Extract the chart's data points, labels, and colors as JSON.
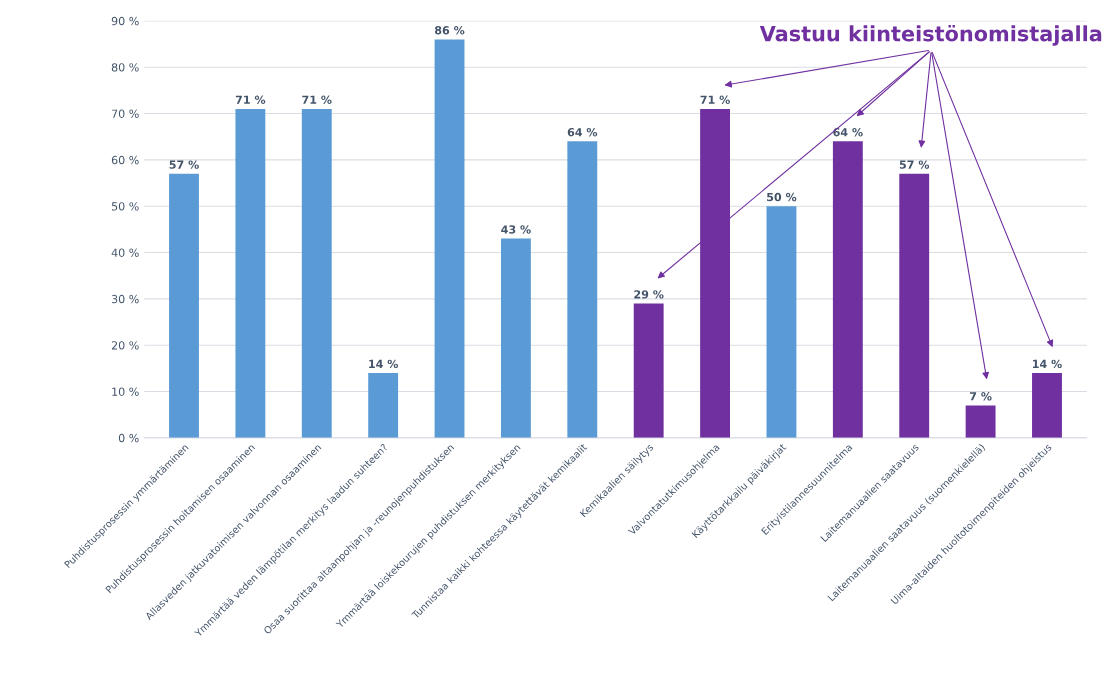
{
  "chart_data": {
    "type": "bar",
    "categories": [
      "Puhdistusprosessin ymmärtäminen",
      "Puhdistusprosessin hoitamisen osaaminen",
      "Allasveden jatkuvatoimisen valvonnan osaaminen",
      "Ymmärtää veden lämpötilan merkitys laadun suhteen?",
      "Osaa suorittaa altaanpohjan ja -reunojenpuhdistuksen",
      "Ymmärtää loiskekourujen puhdistuksen merkityksen",
      "Tunnistaa kaikki kohteessa käytettävät kemikaalit",
      "Kemikaalien säilytys",
      "Valvontatutkimusohjelma",
      "Käyttötarkkailu päiväkirjat",
      "Erityistilannesuunnitelma",
      "Laitemanuaalien saatavuus",
      "Laitemanuaalien saatavuus (suomenkielellä)",
      "Uima-altaiden huoltotoimenpiteiden ohjeistus"
    ],
    "values": [
      57,
      71,
      71,
      14,
      86,
      43,
      64,
      29,
      71,
      50,
      64,
      57,
      7,
      14
    ],
    "value_labels": [
      "57 %",
      "71 %",
      "71 %",
      "14 %",
      "86 %",
      "43 %",
      "64 %",
      "29 %",
      "71 %",
      "50 %",
      "64 %",
      "57 %",
      "7 %",
      "14 %"
    ],
    "colors": [
      "#5b9bd5",
      "#5b9bd5",
      "#5b9bd5",
      "#5b9bd5",
      "#5b9bd5",
      "#5b9bd5",
      "#5b9bd5",
      "#7030a0",
      "#7030a0",
      "#5b9bd5",
      "#7030a0",
      "#7030a0",
      "#7030a0",
      "#7030a0"
    ],
    "annotations": [
      "Vastuu kiinteistönomistajalla"
    ],
    "ylim": [
      0,
      90
    ],
    "yticks": [
      {
        "value": 0,
        "label": "0 %"
      },
      {
        "value": 10,
        "label": "10 %"
      },
      {
        "value": 20,
        "label": "20 %"
      },
      {
        "value": 30,
        "label": "30 %"
      },
      {
        "value": 40,
        "label": "40 %"
      },
      {
        "value": 50,
        "label": "50 %"
      },
      {
        "value": 60,
        "label": "60 %"
      },
      {
        "value": 70,
        "label": "70 %"
      },
      {
        "value": 80,
        "label": "80 %"
      },
      {
        "value": 90,
        "label": "90 %"
      }
    ],
    "grid": "y"
  }
}
